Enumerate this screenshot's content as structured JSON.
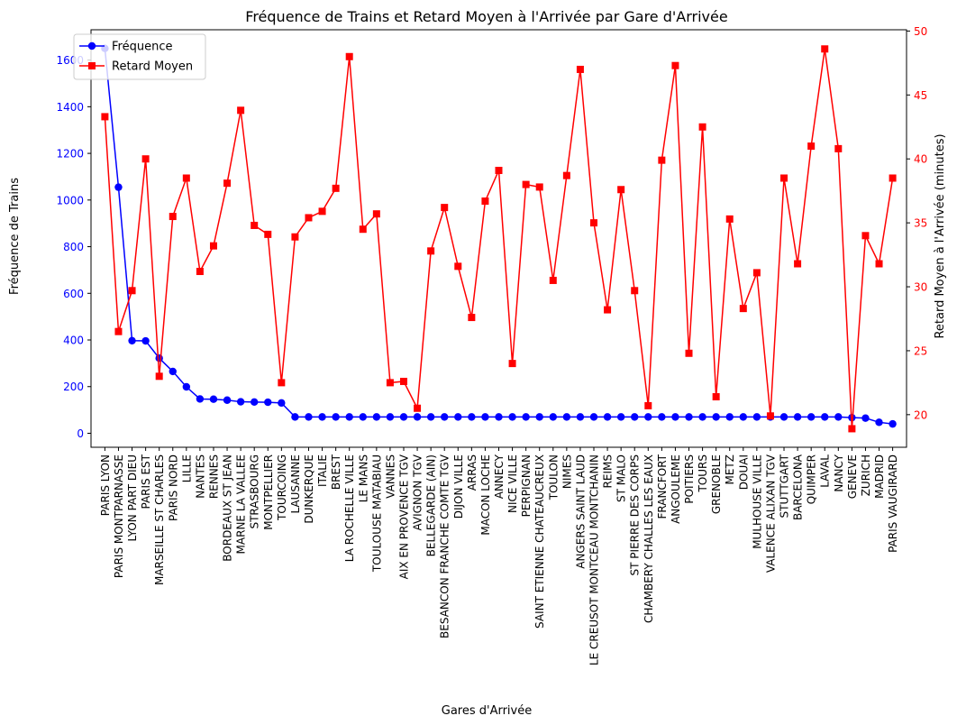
{
  "chart_data": {
    "type": "line",
    "title": "Fréquence de Trains et Retard Moyen à l'Arrivée par Gare d'Arrivée",
    "xlabel": "Gares d'Arrivée",
    "ylabel_left": "Fréquence de Trains",
    "ylabel_right": "Retard Moyen à l'Arrivée (minutes)",
    "categories": [
      "PARIS LYON",
      "PARIS MONTPARNASSE",
      "LYON PART DIEU",
      "PARIS EST",
      "MARSEILLE ST CHARLES",
      "PARIS NORD",
      "LILLE",
      "NANTES",
      "RENNES",
      "BORDEAUX ST JEAN",
      "MARNE LA VALLEE",
      "STRASBOURG",
      "MONTPELLIER",
      "TOURCOING",
      "LAUSANNE",
      "DUNKERQUE",
      "ITALIE",
      "BREST",
      "LA ROCHELLE VILLE",
      "LE MANS",
      "TOULOUSE MATABIAU",
      "VANNES",
      "AIX EN PROVENCE TGV",
      "AVIGNON TGV",
      "BELLEGARDE (AIN)",
      "BESANCON FRANCHE COMTE TGV",
      "DIJON VILLE",
      "ARRAS",
      "MACON LOCHE",
      "ANNECY",
      "NICE VILLE",
      "PERPIGNAN",
      "SAINT ETIENNE CHATEAUCREUX",
      "TOULON",
      "NIMES",
      "ANGERS SAINT LAUD",
      "LE CREUSOT MONTCEAU MONTCHANIN",
      "REIMS",
      "ST MALO",
      "ST PIERRE DES CORPS",
      "CHAMBERY CHALLES LES EAUX",
      "FRANCFORT",
      "ANGOULEME",
      "POITIERS",
      "TOURS",
      "GRENOBLE",
      "METZ",
      "DOUAI",
      "MULHOUSE VILLE",
      "VALENCE ALIXAN TGV",
      "STUTTGART",
      "BARCELONA",
      "QUIMPER",
      "LAVAL",
      "NANCY",
      "GENEVE",
      "ZURICH",
      "MADRID",
      "PARIS VAUGIRARD"
    ],
    "series": [
      {
        "name": "Fréquence",
        "axis": "left",
        "color": "#0000ff",
        "marker": "circle",
        "values": [
          1650,
          1055,
          397,
          396,
          322,
          265,
          199,
          147,
          146,
          142,
          135,
          134,
          133,
          130,
          70,
          70,
          70,
          70,
          70,
          70,
          70,
          70,
          70,
          70,
          70,
          70,
          70,
          70,
          70,
          70,
          70,
          70,
          70,
          70,
          70,
          70,
          70,
          70,
          70,
          70,
          70,
          70,
          70,
          70,
          70,
          70,
          70,
          70,
          70,
          70,
          70,
          70,
          70,
          70,
          70,
          67,
          65,
          47,
          40
        ]
      },
      {
        "name": "Retard Moyen",
        "axis": "right",
        "color": "#ff0000",
        "marker": "square",
        "values": [
          43.3,
          26.5,
          29.7,
          40.0,
          23.0,
          35.5,
          38.5,
          31.2,
          33.2,
          38.1,
          43.8,
          34.8,
          34.1,
          22.5,
          33.9,
          35.4,
          35.9,
          37.7,
          48.0,
          34.5,
          35.7,
          22.5,
          22.6,
          20.5,
          32.8,
          36.2,
          31.6,
          27.6,
          36.7,
          39.1,
          24.0,
          38.0,
          37.8,
          30.5,
          38.7,
          47.0,
          35.0,
          28.2,
          37.6,
          29.7,
          20.7,
          39.9,
          47.3,
          24.8,
          42.5,
          21.4,
          35.3,
          28.3,
          31.1,
          19.9,
          38.5,
          31.8,
          41.0,
          48.6,
          40.8,
          18.9,
          34.0,
          31.8,
          38.5
        ]
      }
    ],
    "ylim_left": [
      -60,
      1730
    ],
    "ylim_right": [
      17.45,
      50.1
    ],
    "yticks_left": [
      0,
      200,
      400,
      600,
      800,
      1000,
      1200,
      1400,
      1600
    ],
    "yticks_right": [
      20,
      25,
      30,
      35,
      40,
      45,
      50
    ],
    "legend": "top-left",
    "grid": false
  }
}
